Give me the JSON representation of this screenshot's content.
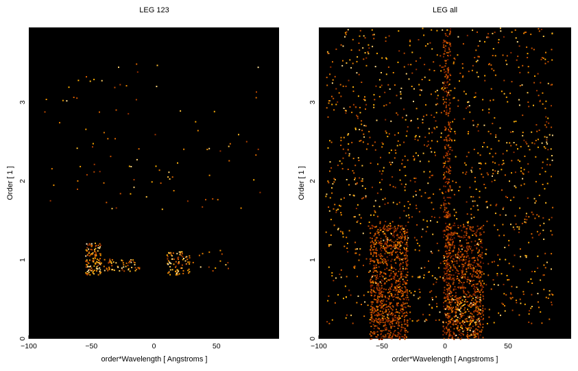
{
  "chart_data": [
    {
      "type": "heatmap",
      "title": "LEG 123",
      "xlabel": "order*Wavelength [ Angstroms ]",
      "ylabel": "Order [ 1 ]",
      "xlim": [
        -100,
        100
      ],
      "ylim": [
        0,
        3.95
      ],
      "xticks": [
        -100,
        -50,
        0,
        50
      ],
      "yticks": [
        0,
        1,
        2,
        3
      ],
      "colormap": [
        "#000000",
        "#7a1a00",
        "#d65a00",
        "#ffb000",
        "#ffffff"
      ],
      "clusters": [
        {
          "x": [
            -55,
            -43
          ],
          "y": [
            0.82,
            1.22
          ],
          "n": 120,
          "intensity": 0.95
        },
        {
          "x": [
            -43,
            -12
          ],
          "y": [
            0.86,
            1.02
          ],
          "n": 60,
          "intensity": 0.9
        },
        {
          "x": [
            10,
            28
          ],
          "y": [
            0.82,
            1.12
          ],
          "n": 80,
          "intensity": 0.95
        },
        {
          "x": [
            28,
            60
          ],
          "y": [
            0.85,
            1.2
          ],
          "n": 14,
          "intensity": 0.9
        },
        {
          "x": [
            -90,
            85
          ],
          "y": [
            1.65,
            3.5
          ],
          "n": 95,
          "intensity": 0.9
        }
      ]
    },
    {
      "type": "heatmap",
      "title": "LEG all",
      "xlabel": "order*Wavelength [ Angstroms ]",
      "ylabel": "Order [ 1 ]",
      "xlim": [
        -100,
        100
      ],
      "ylim": [
        0,
        3.95
      ],
      "xticks": [
        -100,
        -50,
        0,
        50
      ],
      "yticks": [
        0,
        1,
        2,
        3
      ],
      "colormap": [
        "#000000",
        "#7a1a00",
        "#d65a00",
        "#ffb000",
        "#ffffff"
      ],
      "clusters": [
        {
          "x": [
            -60,
            -30
          ],
          "y": [
            0.0,
            1.45
          ],
          "n": 900,
          "intensity": 0.6
        },
        {
          "x": [
            0,
            30
          ],
          "y": [
            0.0,
            1.45
          ],
          "n": 700,
          "intensity": 0.55
        },
        {
          "x": [
            -2,
            4
          ],
          "y": [
            0.0,
            3.95
          ],
          "n": 380,
          "intensity": 0.55
        },
        {
          "x": [
            5,
            28
          ],
          "y": [
            0.05,
            0.55
          ],
          "n": 120,
          "intensity": 0.95
        },
        {
          "x": [
            -95,
            85
          ],
          "y": [
            0.2,
            3.95
          ],
          "n": 1300,
          "intensity": 0.9
        }
      ]
    }
  ]
}
